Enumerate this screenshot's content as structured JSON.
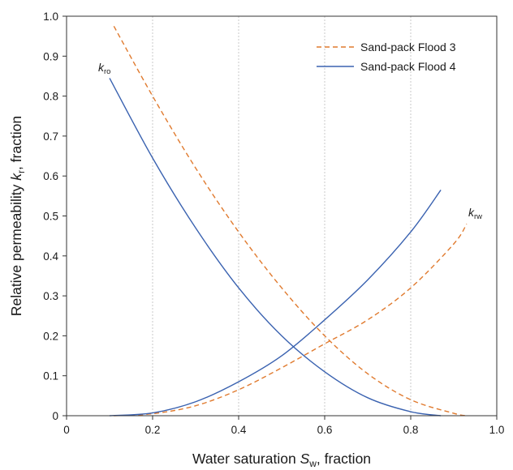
{
  "chart_data": {
    "type": "line",
    "xlabel": {
      "prefix": "Water saturation ",
      "var": "S",
      "sub": "w",
      "suffix": ", fraction"
    },
    "ylabel": {
      "prefix": "Relative permeability ",
      "var": "k",
      "sub": "r",
      "suffix": ", fraction"
    },
    "xlim": [
      0,
      1.0
    ],
    "ylim": [
      0,
      1.0
    ],
    "xticks": [
      "0",
      "0.2",
      "0.4",
      "0.6",
      "0.8",
      "1.0"
    ],
    "yticks": [
      "0",
      "0.1",
      "0.2",
      "0.3",
      "0.4",
      "0.5",
      "0.6",
      "0.7",
      "0.8",
      "0.9",
      "1.0"
    ],
    "grid": "vertical",
    "legend_position": "top-right",
    "annotations": {
      "kro": {
        "var": "k",
        "sub": "ro"
      },
      "krw": {
        "var": "k",
        "sub": "rw"
      }
    },
    "series": [
      {
        "name": "Sand-pack Flood 3",
        "style": "dashed",
        "color": "#E07A2E",
        "kro": {
          "x": [
            0.11,
            0.2,
            0.3,
            0.4,
            0.5,
            0.6,
            0.7,
            0.8,
            0.9,
            0.93
          ],
          "y": [
            0.975,
            0.8,
            0.62,
            0.46,
            0.32,
            0.2,
            0.105,
            0.04,
            0.006,
            0.0
          ]
        },
        "krw": {
          "x": [
            0.11,
            0.2,
            0.3,
            0.4,
            0.5,
            0.6,
            0.7,
            0.8,
            0.9,
            0.93
          ],
          "y": [
            0.0,
            0.005,
            0.025,
            0.065,
            0.12,
            0.18,
            0.24,
            0.32,
            0.43,
            0.48
          ]
        }
      },
      {
        "name": "Sand-pack Flood 4",
        "style": "solid",
        "color": "#3A62B0",
        "kro": {
          "x": [
            0.1,
            0.2,
            0.3,
            0.4,
            0.5,
            0.6,
            0.7,
            0.8,
            0.87
          ],
          "y": [
            0.845,
            0.645,
            0.47,
            0.32,
            0.2,
            0.11,
            0.045,
            0.01,
            0.0
          ]
        },
        "krw": {
          "x": [
            0.1,
            0.2,
            0.3,
            0.4,
            0.5,
            0.6,
            0.7,
            0.8,
            0.87
          ],
          "y": [
            0.0,
            0.007,
            0.035,
            0.085,
            0.15,
            0.24,
            0.34,
            0.46,
            0.565
          ]
        }
      }
    ]
  }
}
